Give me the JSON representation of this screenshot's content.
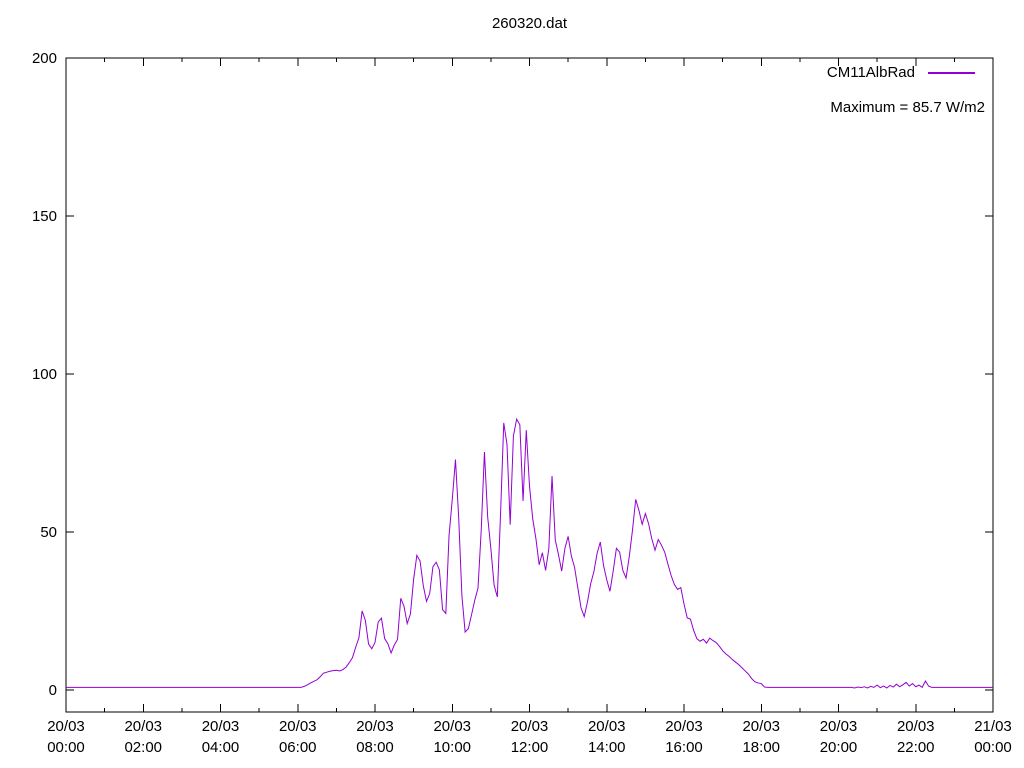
{
  "title": "260320.dat",
  "legend": {
    "series_label": "CM11AlbRad",
    "annotation": "Maximum = 85.7 W/m2"
  },
  "colors": {
    "series": "#9400d3",
    "axis": "#000000",
    "background": "#ffffff",
    "text": "#000000"
  },
  "chart_data": {
    "type": "line",
    "title": "260320.dat",
    "xlabel": "",
    "ylabel": "",
    "grid": false,
    "legend_position": "top-right",
    "x_axis": {
      "range_hours": [
        0,
        24
      ],
      "major_tick_every_hours": 2,
      "minor_tick_every_hours": 1,
      "tick_labels": [
        {
          "date": "20/03",
          "time": "00:00"
        },
        {
          "date": "20/03",
          "time": "02:00"
        },
        {
          "date": "20/03",
          "time": "04:00"
        },
        {
          "date": "20/03",
          "time": "06:00"
        },
        {
          "date": "20/03",
          "time": "08:00"
        },
        {
          "date": "20/03",
          "time": "10:00"
        },
        {
          "date": "20/03",
          "time": "12:00"
        },
        {
          "date": "20/03",
          "time": "14:00"
        },
        {
          "date": "20/03",
          "time": "16:00"
        },
        {
          "date": "20/03",
          "time": "18:00"
        },
        {
          "date": "20/03",
          "time": "20:00"
        },
        {
          "date": "20/03",
          "time": "22:00"
        },
        {
          "date": "21/03",
          "time": "00:00"
        }
      ]
    },
    "y_axis": {
      "ticks": [
        0,
        50,
        100,
        150,
        200
      ],
      "range": [
        -7,
        200
      ],
      "unit": "W/m2"
    },
    "series": [
      {
        "name": "CM11AlbRad",
        "color": "#9400d3",
        "maximum": 85.7,
        "x_start_min": 0,
        "x_step_min": 5,
        "values": [
          0.8,
          0.8,
          0.8,
          0.8,
          0.8,
          0.8,
          0.8,
          0.8,
          0.8,
          0.8,
          0.8,
          0.8,
          0.8,
          0.8,
          0.8,
          0.8,
          0.8,
          0.8,
          0.8,
          0.8,
          0.8,
          0.8,
          0.8,
          0.8,
          0.8,
          0.8,
          0.8,
          0.8,
          0.8,
          0.8,
          0.8,
          0.8,
          0.8,
          0.8,
          0.8,
          0.8,
          0.8,
          0.8,
          0.8,
          0.8,
          0.8,
          0.8,
          0.8,
          0.8,
          0.8,
          0.8,
          0.8,
          0.8,
          0.8,
          0.8,
          0.8,
          0.8,
          0.8,
          0.8,
          0.8,
          0.8,
          0.8,
          0.8,
          0.8,
          0.8,
          0.8,
          0.8,
          0.8,
          0.8,
          0.8,
          0.8,
          0.8,
          0.8,
          0.8,
          0.8,
          0.8,
          0.8,
          0.8,
          0.8,
          1.1,
          1.6,
          2.2,
          2.7,
          3.2,
          4.2,
          5.3,
          5.6,
          5.9,
          6.1,
          6.2,
          6.0,
          6.4,
          7.2,
          8.6,
          10.2,
          13.5,
          16.5,
          25.0,
          22.0,
          14.5,
          13.0,
          15.0,
          21.5,
          22.7,
          16.2,
          14.6,
          11.7,
          14.2,
          16.0,
          29.0,
          26.5,
          21.0,
          24.0,
          35.0,
          42.6,
          40.8,
          33.0,
          28.0,
          30.5,
          39.0,
          40.4,
          38.0,
          25.4,
          24.2,
          48.8,
          60.2,
          72.9,
          54.5,
          29.8,
          18.3,
          19.4,
          23.8,
          28.4,
          32.2,
          50.5,
          75.3,
          54.8,
          44.7,
          33.2,
          29.4,
          55.6,
          84.5,
          77.8,
          52.3,
          80.4,
          85.7,
          83.9,
          59.8,
          82.2,
          64.5,
          54.2,
          47.8,
          39.6,
          43.4,
          37.8,
          44.6,
          67.7,
          47.5,
          42.8,
          37.6,
          44.8,
          48.6,
          42.4,
          38.8,
          32.4,
          26.0,
          23.2,
          27.8,
          33.6,
          37.4,
          43.2,
          46.8,
          39.4,
          34.8,
          31.2,
          37.6,
          44.8,
          43.6,
          37.8,
          35.4,
          42.2,
          50.6,
          60.3,
          56.8,
          52.4,
          55.8,
          52.6,
          47.8,
          44.2,
          47.6,
          45.8,
          43.6,
          39.8,
          36.2,
          33.4,
          31.8,
          32.4,
          27.2,
          22.8,
          22.4,
          18.8,
          16.2,
          15.4,
          16.0,
          14.8,
          16.4,
          15.6,
          15.0,
          13.8,
          12.4,
          11.4,
          10.6,
          9.6,
          8.8,
          8.0,
          7.0,
          6.0,
          5.0,
          3.6,
          2.6,
          2.2,
          2.0,
          0.9,
          0.8,
          0.8,
          0.8,
          0.8,
          0.8,
          0.8,
          0.8,
          0.8,
          0.8,
          0.8,
          0.8,
          0.8,
          0.8,
          0.8,
          0.8,
          0.8,
          0.8,
          0.8,
          0.8,
          0.8,
          0.8,
          0.8,
          0.8,
          0.8,
          0.8,
          0.8,
          0.8,
          0.6,
          0.9,
          0.7,
          1.0,
          0.6,
          1.1,
          0.8,
          1.5,
          0.7,
          1.2,
          0.6,
          1.4,
          0.9,
          1.8,
          1.0,
          1.6,
          2.4,
          1.2,
          2.0,
          1.0,
          1.5,
          0.8,
          2.8,
          1.2,
          0.8,
          0.8,
          0.8,
          0.8,
          0.8,
          0.8,
          0.8,
          0.8,
          0.8,
          0.8,
          0.8,
          0.8,
          0.8,
          0.8,
          0.8,
          0.8,
          0.8,
          0.8,
          0.8,
          0.8
        ]
      }
    ]
  }
}
